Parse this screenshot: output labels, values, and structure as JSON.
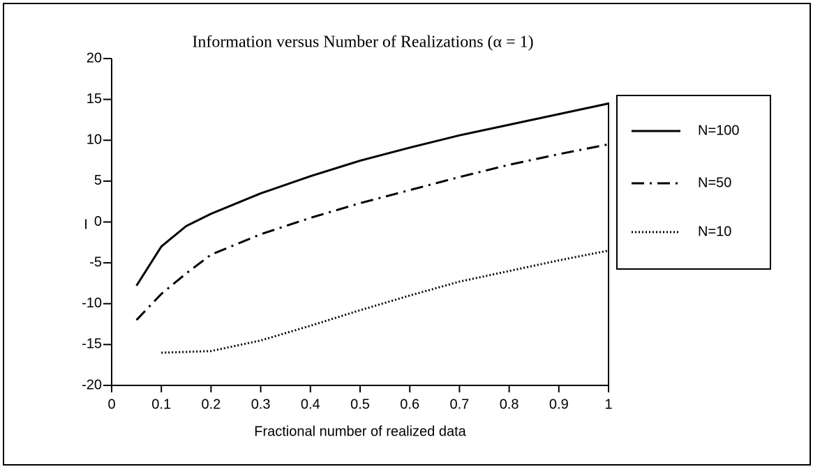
{
  "chart_data": {
    "type": "line",
    "title": "Information versus Number of Realizations  (α = 1)",
    "xlabel": "Fractional number of realized data",
    "ylabel": "I",
    "xlim": [
      0,
      1
    ],
    "xticks": [
      0,
      0.1,
      0.2,
      0.3,
      0.4,
      0.5,
      0.6,
      0.7,
      0.8,
      0.9,
      1
    ],
    "ylim": [
      -20,
      20
    ],
    "yticks": [
      -20,
      -15,
      -10,
      -5,
      0,
      5,
      10,
      15,
      20
    ],
    "grid": false,
    "legend": "outside-right",
    "series": [
      {
        "name": "N=100",
        "color": "#000000",
        "linestyle": "solid",
        "x": [
          0.05,
          0.1,
          0.15,
          0.2,
          0.3,
          0.4,
          0.5,
          0.6,
          0.7,
          0.8,
          0.9,
          1
        ],
        "values": [
          -7.8,
          -3,
          -0.5,
          1,
          3.5,
          5.6,
          7.5,
          9.1,
          10.6,
          11.9,
          13.2,
          14.5
        ]
      },
      {
        "name": "N=50",
        "color": "#000000",
        "linestyle": "dashdot",
        "x": [
          0.05,
          0.1,
          0.15,
          0.2,
          0.3,
          0.4,
          0.5,
          0.6,
          0.7,
          0.8,
          0.9,
          1
        ],
        "values": [
          -12,
          -8.8,
          -6.3,
          -4,
          -1.5,
          0.5,
          2.3,
          3.9,
          5.5,
          7,
          8.3,
          9.5
        ]
      },
      {
        "name": "N=10",
        "color": "#000000",
        "linestyle": "dotted",
        "x": [
          0.1,
          0.2,
          0.3,
          0.4,
          0.5,
          0.6,
          0.7,
          0.8,
          0.9,
          1
        ],
        "values": [
          -16,
          -15.8,
          -14.5,
          -12.7,
          -10.8,
          -9,
          -7.3,
          -6,
          -4.7,
          -3.5
        ]
      }
    ]
  }
}
